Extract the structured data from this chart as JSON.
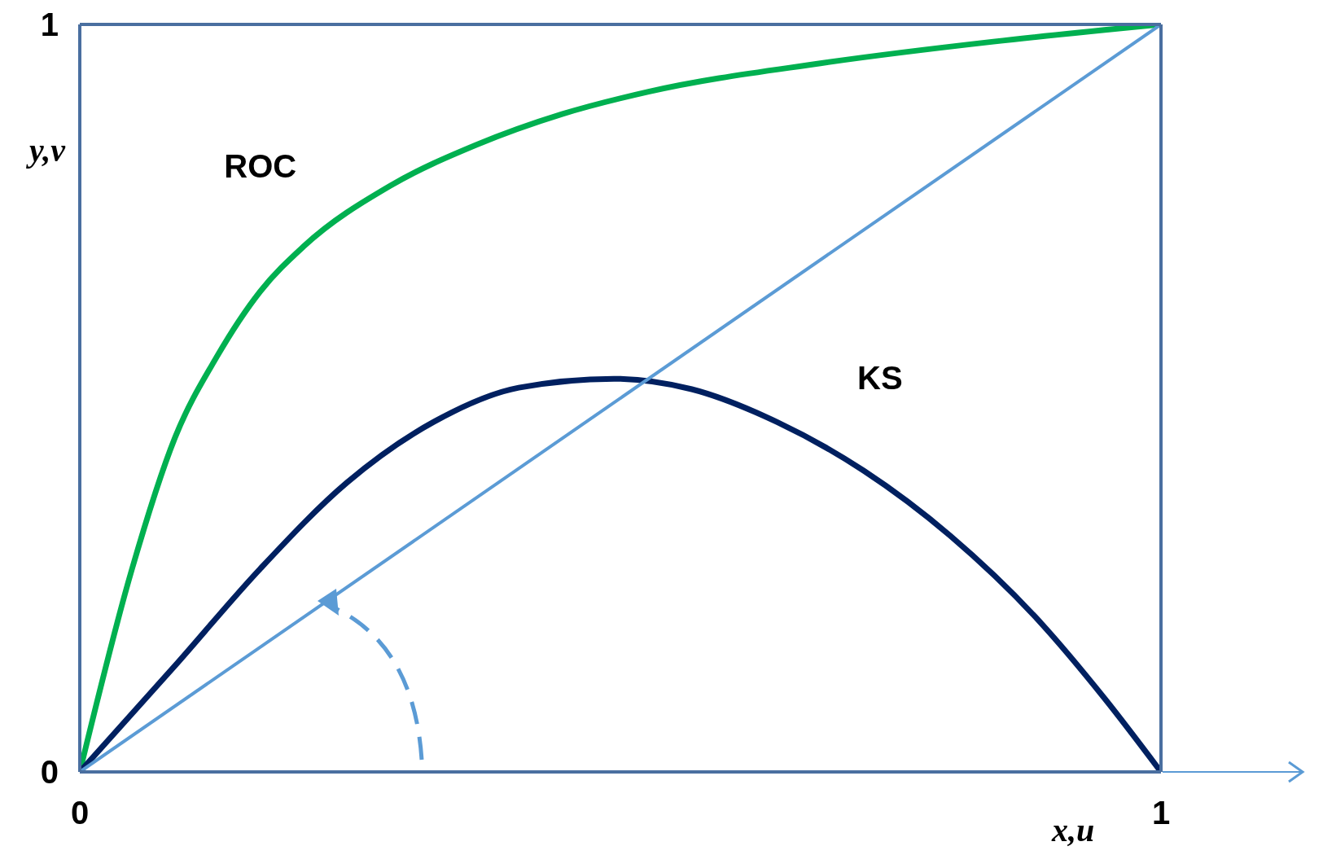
{
  "chart_data": {
    "type": "line",
    "xlabel": "x,u",
    "ylabel": "y,v",
    "xlim": [
      0,
      1
    ],
    "ylim": [
      0,
      1
    ],
    "xticks": [
      0,
      1
    ],
    "yticks": [
      0,
      1
    ],
    "series": [
      {
        "name": "ROC",
        "color": "#00b050",
        "x": [
          0,
          0.048,
          0.088,
          0.127,
          0.167,
          0.207,
          0.287,
          0.367,
          0.446,
          0.526,
          0.685,
          0.845,
          1
        ],
        "values": [
          0,
          0.27,
          0.447,
          0.556,
          0.643,
          0.703,
          0.784,
          0.839,
          0.88,
          0.91,
          0.948,
          0.977,
          1
        ]
      },
      {
        "name": "KS",
        "color": "#002060",
        "x": [
          0,
          0.088,
          0.167,
          0.247,
          0.327,
          0.406,
          0.494,
          0.566,
          0.645,
          0.725,
          0.805,
          0.884,
          0.948,
          1
        ],
        "values": [
          0,
          0.142,
          0.272,
          0.387,
          0.468,
          0.514,
          0.526,
          0.512,
          0.468,
          0.403,
          0.316,
          0.207,
          0.098,
          0
        ]
      },
      {
        "color": "#5b9bd5",
        "x": [
          0,
          1
        ],
        "values": [
          0,
          1
        ]
      }
    ]
  }
}
